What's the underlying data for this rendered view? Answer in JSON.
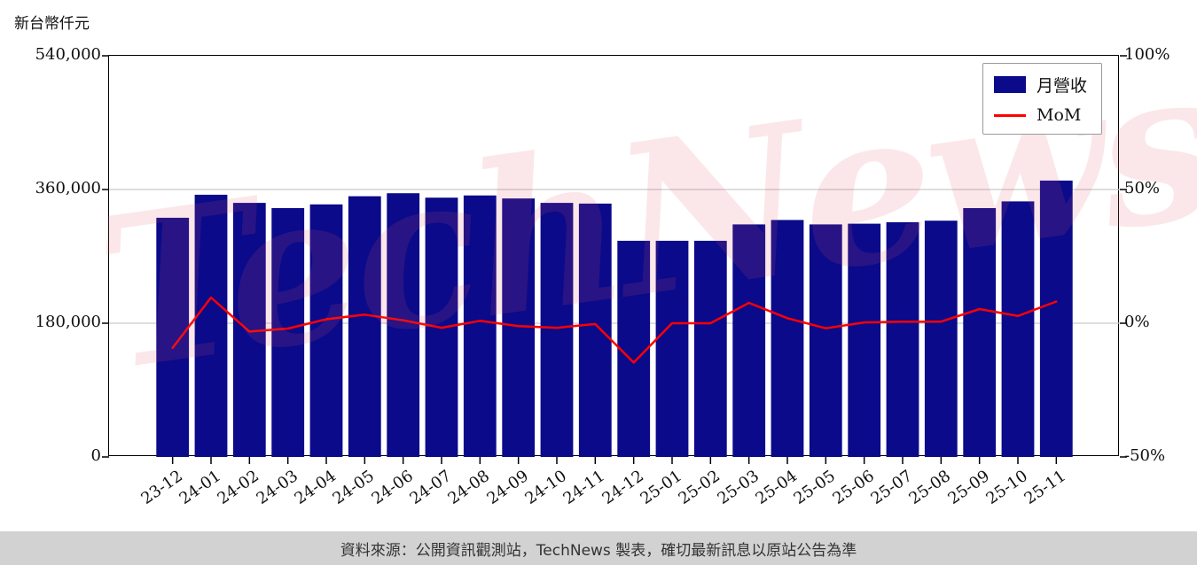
{
  "unit_label": "新台幣仟元",
  "watermark": {
    "text": "TechNews",
    "color": "#e05264"
  },
  "footer": {
    "text": "資料來源：公開資訊觀測站，TechNews 製表，確切最新訊息以原站公告為準"
  },
  "chart_data": {
    "type": "bar",
    "subtype": "bar+line-dual-axis",
    "categories": [
      "23-12",
      "24-01",
      "24-02",
      "24-03",
      "24-04",
      "24-05",
      "24-06",
      "24-07",
      "24-08",
      "24-09",
      "24-10",
      "24-11",
      "24-12",
      "25-01",
      "25-02",
      "25-03",
      "25-04",
      "25-05",
      "25-06",
      "25-07",
      "25-08",
      "25-09",
      "25-10",
      "25-11"
    ],
    "series": [
      {
        "name": "月營收",
        "type": "bar",
        "axis": "left",
        "color": "#0a0a8a",
        "values": [
          322000,
          353000,
          342000,
          335000,
          340000,
          351000,
          355000,
          349000,
          352000,
          348000,
          342000,
          341000,
          291000,
          291000,
          291000,
          313000,
          319000,
          313000,
          314000,
          316000,
          318000,
          335000,
          344000,
          372000
        ]
      },
      {
        "name": "MoM",
        "type": "line",
        "axis": "right",
        "color": "#ff0000",
        "values": [
          -9.2,
          9.6,
          -3.1,
          -2.0,
          1.5,
          3.2,
          1.1,
          -1.7,
          0.9,
          -1.1,
          -1.7,
          -0.3,
          -14.7,
          0.0,
          0.0,
          7.6,
          1.9,
          -1.9,
          0.3,
          0.6,
          0.6,
          5.3,
          2.7,
          8.1
        ]
      }
    ],
    "left_axis": {
      "title": "新台幣仟元",
      "min": 0,
      "max": 540000,
      "ticks": [
        "540,000",
        "360,000",
        "180,000",
        "0"
      ]
    },
    "right_axis": {
      "min": -50,
      "max": 100,
      "ticks": [
        "100%",
        "50%",
        "0%",
        "-50%"
      ]
    },
    "grid_values": [
      360000,
      180000
    ],
    "grid": "horizontal",
    "legend": {
      "position": "top-right",
      "entries": [
        "月營收",
        "MoM"
      ]
    }
  }
}
